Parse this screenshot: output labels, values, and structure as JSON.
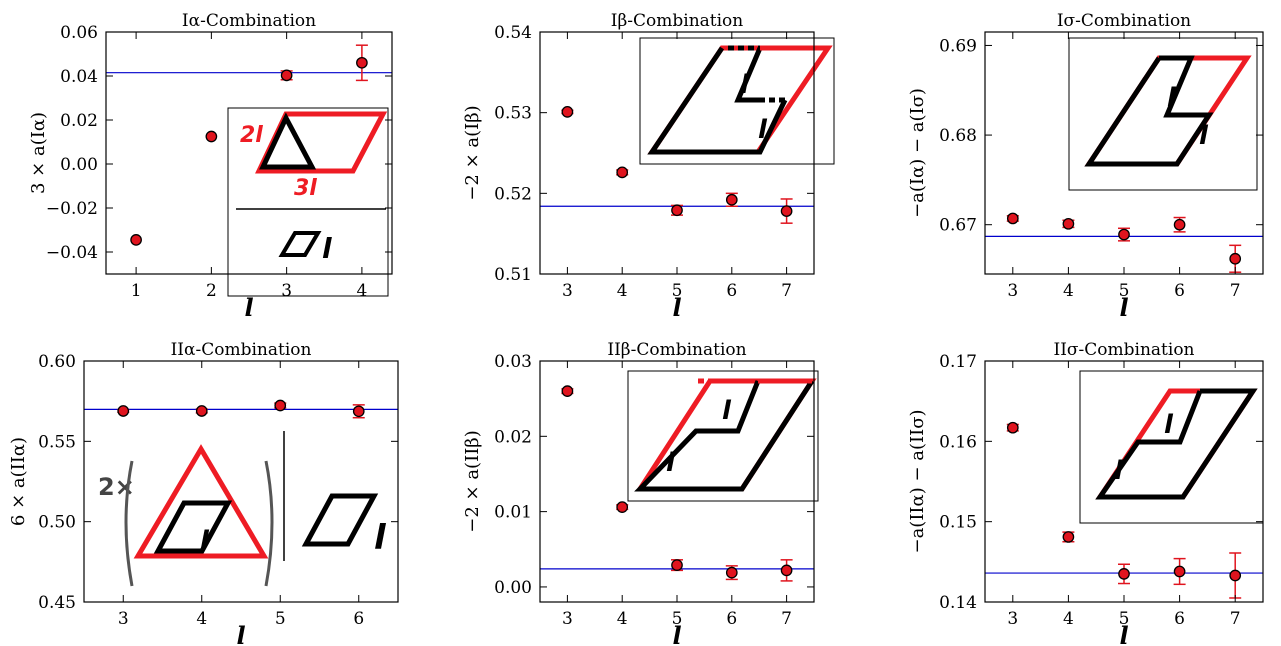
{
  "chart_data": [
    {
      "type": "scatter",
      "title": "Iα-Combination",
      "xlabel": "l",
      "ylabel": "3 × a(Iα)",
      "xlim": [
        0.6,
        4.4
      ],
      "ylim": [
        -0.05,
        0.06
      ],
      "xticks": [
        1,
        2,
        3,
        4
      ],
      "yticks": [
        -0.04,
        -0.02,
        0.0,
        0.02,
        0.04,
        0.06
      ],
      "ytick_labels": [
        "−0.04",
        "−0.02",
        "0.00",
        "0.02",
        "0.04",
        "0.06"
      ],
      "x": [
        1,
        2,
        3,
        4
      ],
      "y": [
        -0.0345,
        0.0125,
        0.0403,
        0.046
      ],
      "yerr": [
        0.0,
        0.0,
        0.002,
        0.008
      ],
      "hline": 0.0415,
      "inset": {
        "type": "alpha",
        "labels": [
          "2l",
          "3l",
          "l"
        ]
      }
    },
    {
      "type": "scatter",
      "title": "Iβ-Combination",
      "xlabel": "l",
      "ylabel": "−2 × a(Iβ)",
      "xlim": [
        2.5,
        7.5
      ],
      "ylim": [
        0.51,
        0.54
      ],
      "xticks": [
        3,
        4,
        5,
        6,
        7
      ],
      "yticks": [
        0.51,
        0.52,
        0.53,
        0.54
      ],
      "ytick_labels": [
        "0.51",
        "0.52",
        "0.53",
        "0.54"
      ],
      "x": [
        3,
        4,
        5,
        6,
        7
      ],
      "y": [
        0.5301,
        0.5226,
        0.5179,
        0.5192,
        0.5178
      ],
      "yerr": [
        0.0002,
        0.0003,
        0.0006,
        0.0008,
        0.0015
      ],
      "hline": 0.5184,
      "inset": {
        "type": "beta",
        "labels": [
          "l",
          "l"
        ]
      }
    },
    {
      "type": "scatter",
      "title": "Iσ-Combination",
      "xlabel": "l",
      "ylabel": "−a(Iα) − a(Iσ)",
      "xlim": [
        2.5,
        7.5
      ],
      "ylim": [
        0.6645,
        0.6915
      ],
      "xticks": [
        3,
        4,
        5,
        6,
        7
      ],
      "yticks": [
        0.67,
        0.68,
        0.69
      ],
      "ytick_labels": [
        "0.67",
        "0.68",
        "0.69"
      ],
      "x": [
        3,
        4,
        5,
        6,
        7
      ],
      "y": [
        0.6707,
        0.6701,
        0.6689,
        0.67,
        0.6662
      ],
      "yerr": [
        0.0003,
        0.0004,
        0.0007,
        0.0008,
        0.0015
      ],
      "hline": 0.6687,
      "inset": {
        "type": "sigma",
        "labels": [
          "l",
          "l"
        ]
      }
    },
    {
      "type": "scatter",
      "title": "IIα-Combination",
      "xlabel": "l",
      "ylabel": "6 × a(IIα)",
      "xlim": [
        2.5,
        6.5
      ],
      "ylim": [
        0.45,
        0.6
      ],
      "xticks": [
        3,
        4,
        5,
        6
      ],
      "yticks": [
        0.45,
        0.5,
        0.55,
        0.6
      ],
      "ytick_labels": [
        "0.45",
        "0.50",
        "0.55",
        "0.60"
      ],
      "x": [
        3,
        4,
        5,
        6
      ],
      "y": [
        0.5689,
        0.5689,
        0.5723,
        0.5687
      ],
      "yerr": [
        0.0008,
        0.0012,
        0.0015,
        0.004
      ],
      "hline": 0.5699,
      "inset": {
        "type": "alpha2",
        "labels": [
          "2×",
          "l",
          "l"
        ]
      }
    },
    {
      "type": "scatter",
      "title": "IIβ-Combination",
      "xlabel": "l",
      "ylabel": "−2 × a(IIβ)",
      "xlim": [
        2.5,
        7.5
      ],
      "ylim": [
        -0.002,
        0.03
      ],
      "xticks": [
        3,
        4,
        5,
        6,
        7
      ],
      "yticks": [
        0.0,
        0.01,
        0.02,
        0.03
      ],
      "ytick_labels": [
        "0.00",
        "0.01",
        "0.02",
        "0.03"
      ],
      "x": [
        3,
        4,
        5,
        6,
        7
      ],
      "y": [
        0.026,
        0.0106,
        0.0029,
        0.0019,
        0.0022
      ],
      "yerr": [
        0.0003,
        0.0003,
        0.0007,
        0.0009,
        0.0014
      ],
      "hline": 0.0024,
      "inset": {
        "type": "beta2",
        "labels": [
          "l",
          "l"
        ]
      }
    },
    {
      "type": "scatter",
      "title": "IIσ-Combination",
      "xlabel": "l",
      "ylabel": "−a(IIα) − a(IIσ)",
      "xlim": [
        2.5,
        7.5
      ],
      "ylim": [
        0.14,
        0.17
      ],
      "xticks": [
        3,
        4,
        5,
        6,
        7
      ],
      "yticks": [
        0.14,
        0.15,
        0.16,
        0.17
      ],
      "ytick_labels": [
        "0.14",
        "0.15",
        "0.16",
        "0.17"
      ],
      "x": [
        3,
        4,
        5,
        6,
        7
      ],
      "y": [
        0.1617,
        0.1481,
        0.1435,
        0.1438,
        0.1433
      ],
      "yerr": [
        0.0004,
        0.0006,
        0.0012,
        0.0016,
        0.0028
      ],
      "hline": 0.1436,
      "inset": {
        "type": "sigma2",
        "labels": [
          "l",
          "l"
        ]
      }
    }
  ],
  "colors": {
    "marker_fill": "#e0141e",
    "marker_edge": "#000000",
    "errorbar": "#e0141e",
    "fit_line": "#0000cc",
    "inset_red": "#ee1c24",
    "inset_black": "#000000"
  }
}
